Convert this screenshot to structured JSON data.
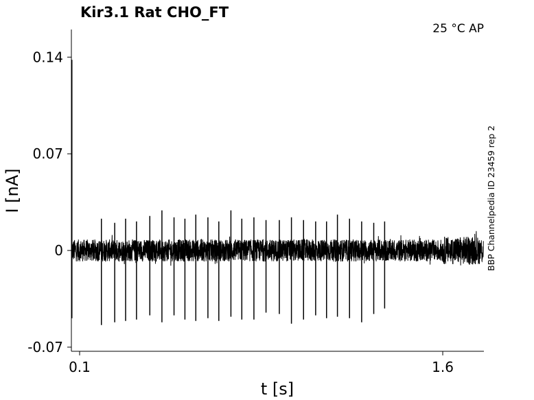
{
  "chart_data": {
    "type": "line",
    "title": "Kir3.1  Rat  CHO_FT",
    "condition": "25 °C  AP",
    "side_label": "BBP Channelpedia ID 23459 rep 2",
    "xlabel": "t [s]",
    "ylabel": "I [nA]",
    "xlim": [
      0.066,
      1.77
    ],
    "ylim": [
      -0.073,
      0.16
    ],
    "xticks": [
      {
        "value": 0.1,
        "label": "0.1"
      },
      {
        "value": 1.6,
        "label": "1.6"
      }
    ],
    "yticks": [
      {
        "value": 0.14,
        "label": "0.14"
      },
      {
        "value": 0.07,
        "label": "0.07"
      },
      {
        "value": 0,
        "label": "0"
      },
      {
        "value": -0.07,
        "label": "-0.07"
      }
    ],
    "grid": false,
    "line_color": "#000000",
    "series": [
      {
        "baseline": 0.0,
        "noise_amplitude": 0.008,
        "initial_transient": {
          "t": 0.068,
          "peak": 0.138,
          "trough": -0.049
        },
        "spikes": [
          {
            "t": 0.19,
            "up": 0.023,
            "down": -0.054
          },
          {
            "t": 0.245,
            "up": 0.02,
            "down": -0.052
          },
          {
            "t": 0.29,
            "up": 0.023,
            "down": -0.051
          },
          {
            "t": 0.335,
            "up": 0.021,
            "down": -0.05
          },
          {
            "t": 0.39,
            "up": 0.025,
            "down": -0.047
          },
          {
            "t": 0.44,
            "up": 0.029,
            "down": -0.052
          },
          {
            "t": 0.49,
            "up": 0.024,
            "down": -0.047
          },
          {
            "t": 0.535,
            "up": 0.023,
            "down": -0.05
          },
          {
            "t": 0.58,
            "up": 0.026,
            "down": -0.051
          },
          {
            "t": 0.63,
            "up": 0.024,
            "down": -0.049
          },
          {
            "t": 0.675,
            "up": 0.021,
            "down": -0.051
          },
          {
            "t": 0.725,
            "up": 0.029,
            "down": -0.048
          },
          {
            "t": 0.77,
            "up": 0.023,
            "down": -0.05
          },
          {
            "t": 0.82,
            "up": 0.024,
            "down": -0.05
          },
          {
            "t": 0.87,
            "up": 0.022,
            "down": -0.045
          },
          {
            "t": 0.925,
            "up": 0.022,
            "down": -0.046
          },
          {
            "t": 0.975,
            "up": 0.024,
            "down": -0.053
          },
          {
            "t": 1.025,
            "up": 0.022,
            "down": -0.05
          },
          {
            "t": 1.075,
            "up": 0.021,
            "down": -0.047
          },
          {
            "t": 1.12,
            "up": 0.021,
            "down": -0.049
          },
          {
            "t": 1.165,
            "up": 0.026,
            "down": -0.048
          },
          {
            "t": 1.215,
            "up": 0.023,
            "down": -0.049
          },
          {
            "t": 1.265,
            "up": 0.021,
            "down": -0.052
          },
          {
            "t": 1.315,
            "up": 0.02,
            "down": -0.046
          },
          {
            "t": 1.36,
            "up": 0.021,
            "down": -0.042
          }
        ]
      }
    ]
  }
}
